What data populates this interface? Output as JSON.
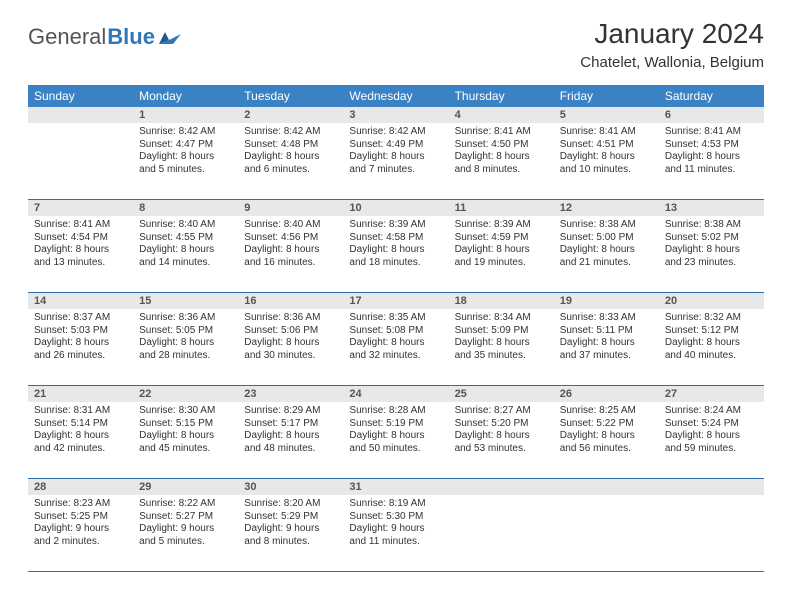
{
  "logo": {
    "part1": "General",
    "part2": "Blue"
  },
  "title": "January 2024",
  "location": "Chatelet, Wallonia, Belgium",
  "header_bg": "#3b82c4",
  "daynum_bg": "#e8e8e8",
  "border_color": "#2f6da6",
  "day_names": [
    "Sunday",
    "Monday",
    "Tuesday",
    "Wednesday",
    "Thursday",
    "Friday",
    "Saturday"
  ],
  "weeks": [
    {
      "nums": [
        "",
        "1",
        "2",
        "3",
        "4",
        "5",
        "6"
      ],
      "cells": [
        null,
        {
          "sunrise": "8:42 AM",
          "sunset": "4:47 PM",
          "daylight": "8 hours and 5 minutes."
        },
        {
          "sunrise": "8:42 AM",
          "sunset": "4:48 PM",
          "daylight": "8 hours and 6 minutes."
        },
        {
          "sunrise": "8:42 AM",
          "sunset": "4:49 PM",
          "daylight": "8 hours and 7 minutes."
        },
        {
          "sunrise": "8:41 AM",
          "sunset": "4:50 PM",
          "daylight": "8 hours and 8 minutes."
        },
        {
          "sunrise": "8:41 AM",
          "sunset": "4:51 PM",
          "daylight": "8 hours and 10 minutes."
        },
        {
          "sunrise": "8:41 AM",
          "sunset": "4:53 PM",
          "daylight": "8 hours and 11 minutes."
        }
      ]
    },
    {
      "nums": [
        "7",
        "8",
        "9",
        "10",
        "11",
        "12",
        "13"
      ],
      "cells": [
        {
          "sunrise": "8:41 AM",
          "sunset": "4:54 PM",
          "daylight": "8 hours and 13 minutes."
        },
        {
          "sunrise": "8:40 AM",
          "sunset": "4:55 PM",
          "daylight": "8 hours and 14 minutes."
        },
        {
          "sunrise": "8:40 AM",
          "sunset": "4:56 PM",
          "daylight": "8 hours and 16 minutes."
        },
        {
          "sunrise": "8:39 AM",
          "sunset": "4:58 PM",
          "daylight": "8 hours and 18 minutes."
        },
        {
          "sunrise": "8:39 AM",
          "sunset": "4:59 PM",
          "daylight": "8 hours and 19 minutes."
        },
        {
          "sunrise": "8:38 AM",
          "sunset": "5:00 PM",
          "daylight": "8 hours and 21 minutes."
        },
        {
          "sunrise": "8:38 AM",
          "sunset": "5:02 PM",
          "daylight": "8 hours and 23 minutes."
        }
      ]
    },
    {
      "nums": [
        "14",
        "15",
        "16",
        "17",
        "18",
        "19",
        "20"
      ],
      "cells": [
        {
          "sunrise": "8:37 AM",
          "sunset": "5:03 PM",
          "daylight": "8 hours and 26 minutes."
        },
        {
          "sunrise": "8:36 AM",
          "sunset": "5:05 PM",
          "daylight": "8 hours and 28 minutes."
        },
        {
          "sunrise": "8:36 AM",
          "sunset": "5:06 PM",
          "daylight": "8 hours and 30 minutes."
        },
        {
          "sunrise": "8:35 AM",
          "sunset": "5:08 PM",
          "daylight": "8 hours and 32 minutes."
        },
        {
          "sunrise": "8:34 AM",
          "sunset": "5:09 PM",
          "daylight": "8 hours and 35 minutes."
        },
        {
          "sunrise": "8:33 AM",
          "sunset": "5:11 PM",
          "daylight": "8 hours and 37 minutes."
        },
        {
          "sunrise": "8:32 AM",
          "sunset": "5:12 PM",
          "daylight": "8 hours and 40 minutes."
        }
      ]
    },
    {
      "nums": [
        "21",
        "22",
        "23",
        "24",
        "25",
        "26",
        "27"
      ],
      "cells": [
        {
          "sunrise": "8:31 AM",
          "sunset": "5:14 PM",
          "daylight": "8 hours and 42 minutes."
        },
        {
          "sunrise": "8:30 AM",
          "sunset": "5:15 PM",
          "daylight": "8 hours and 45 minutes."
        },
        {
          "sunrise": "8:29 AM",
          "sunset": "5:17 PM",
          "daylight": "8 hours and 48 minutes."
        },
        {
          "sunrise": "8:28 AM",
          "sunset": "5:19 PM",
          "daylight": "8 hours and 50 minutes."
        },
        {
          "sunrise": "8:27 AM",
          "sunset": "5:20 PM",
          "daylight": "8 hours and 53 minutes."
        },
        {
          "sunrise": "8:25 AM",
          "sunset": "5:22 PM",
          "daylight": "8 hours and 56 minutes."
        },
        {
          "sunrise": "8:24 AM",
          "sunset": "5:24 PM",
          "daylight": "8 hours and 59 minutes."
        }
      ]
    },
    {
      "nums": [
        "28",
        "29",
        "30",
        "31",
        "",
        "",
        ""
      ],
      "cells": [
        {
          "sunrise": "8:23 AM",
          "sunset": "5:25 PM",
          "daylight": "9 hours and 2 minutes."
        },
        {
          "sunrise": "8:22 AM",
          "sunset": "5:27 PM",
          "daylight": "9 hours and 5 minutes."
        },
        {
          "sunrise": "8:20 AM",
          "sunset": "5:29 PM",
          "daylight": "9 hours and 8 minutes."
        },
        {
          "sunrise": "8:19 AM",
          "sunset": "5:30 PM",
          "daylight": "9 hours and 11 minutes."
        },
        null,
        null,
        null
      ]
    }
  ]
}
